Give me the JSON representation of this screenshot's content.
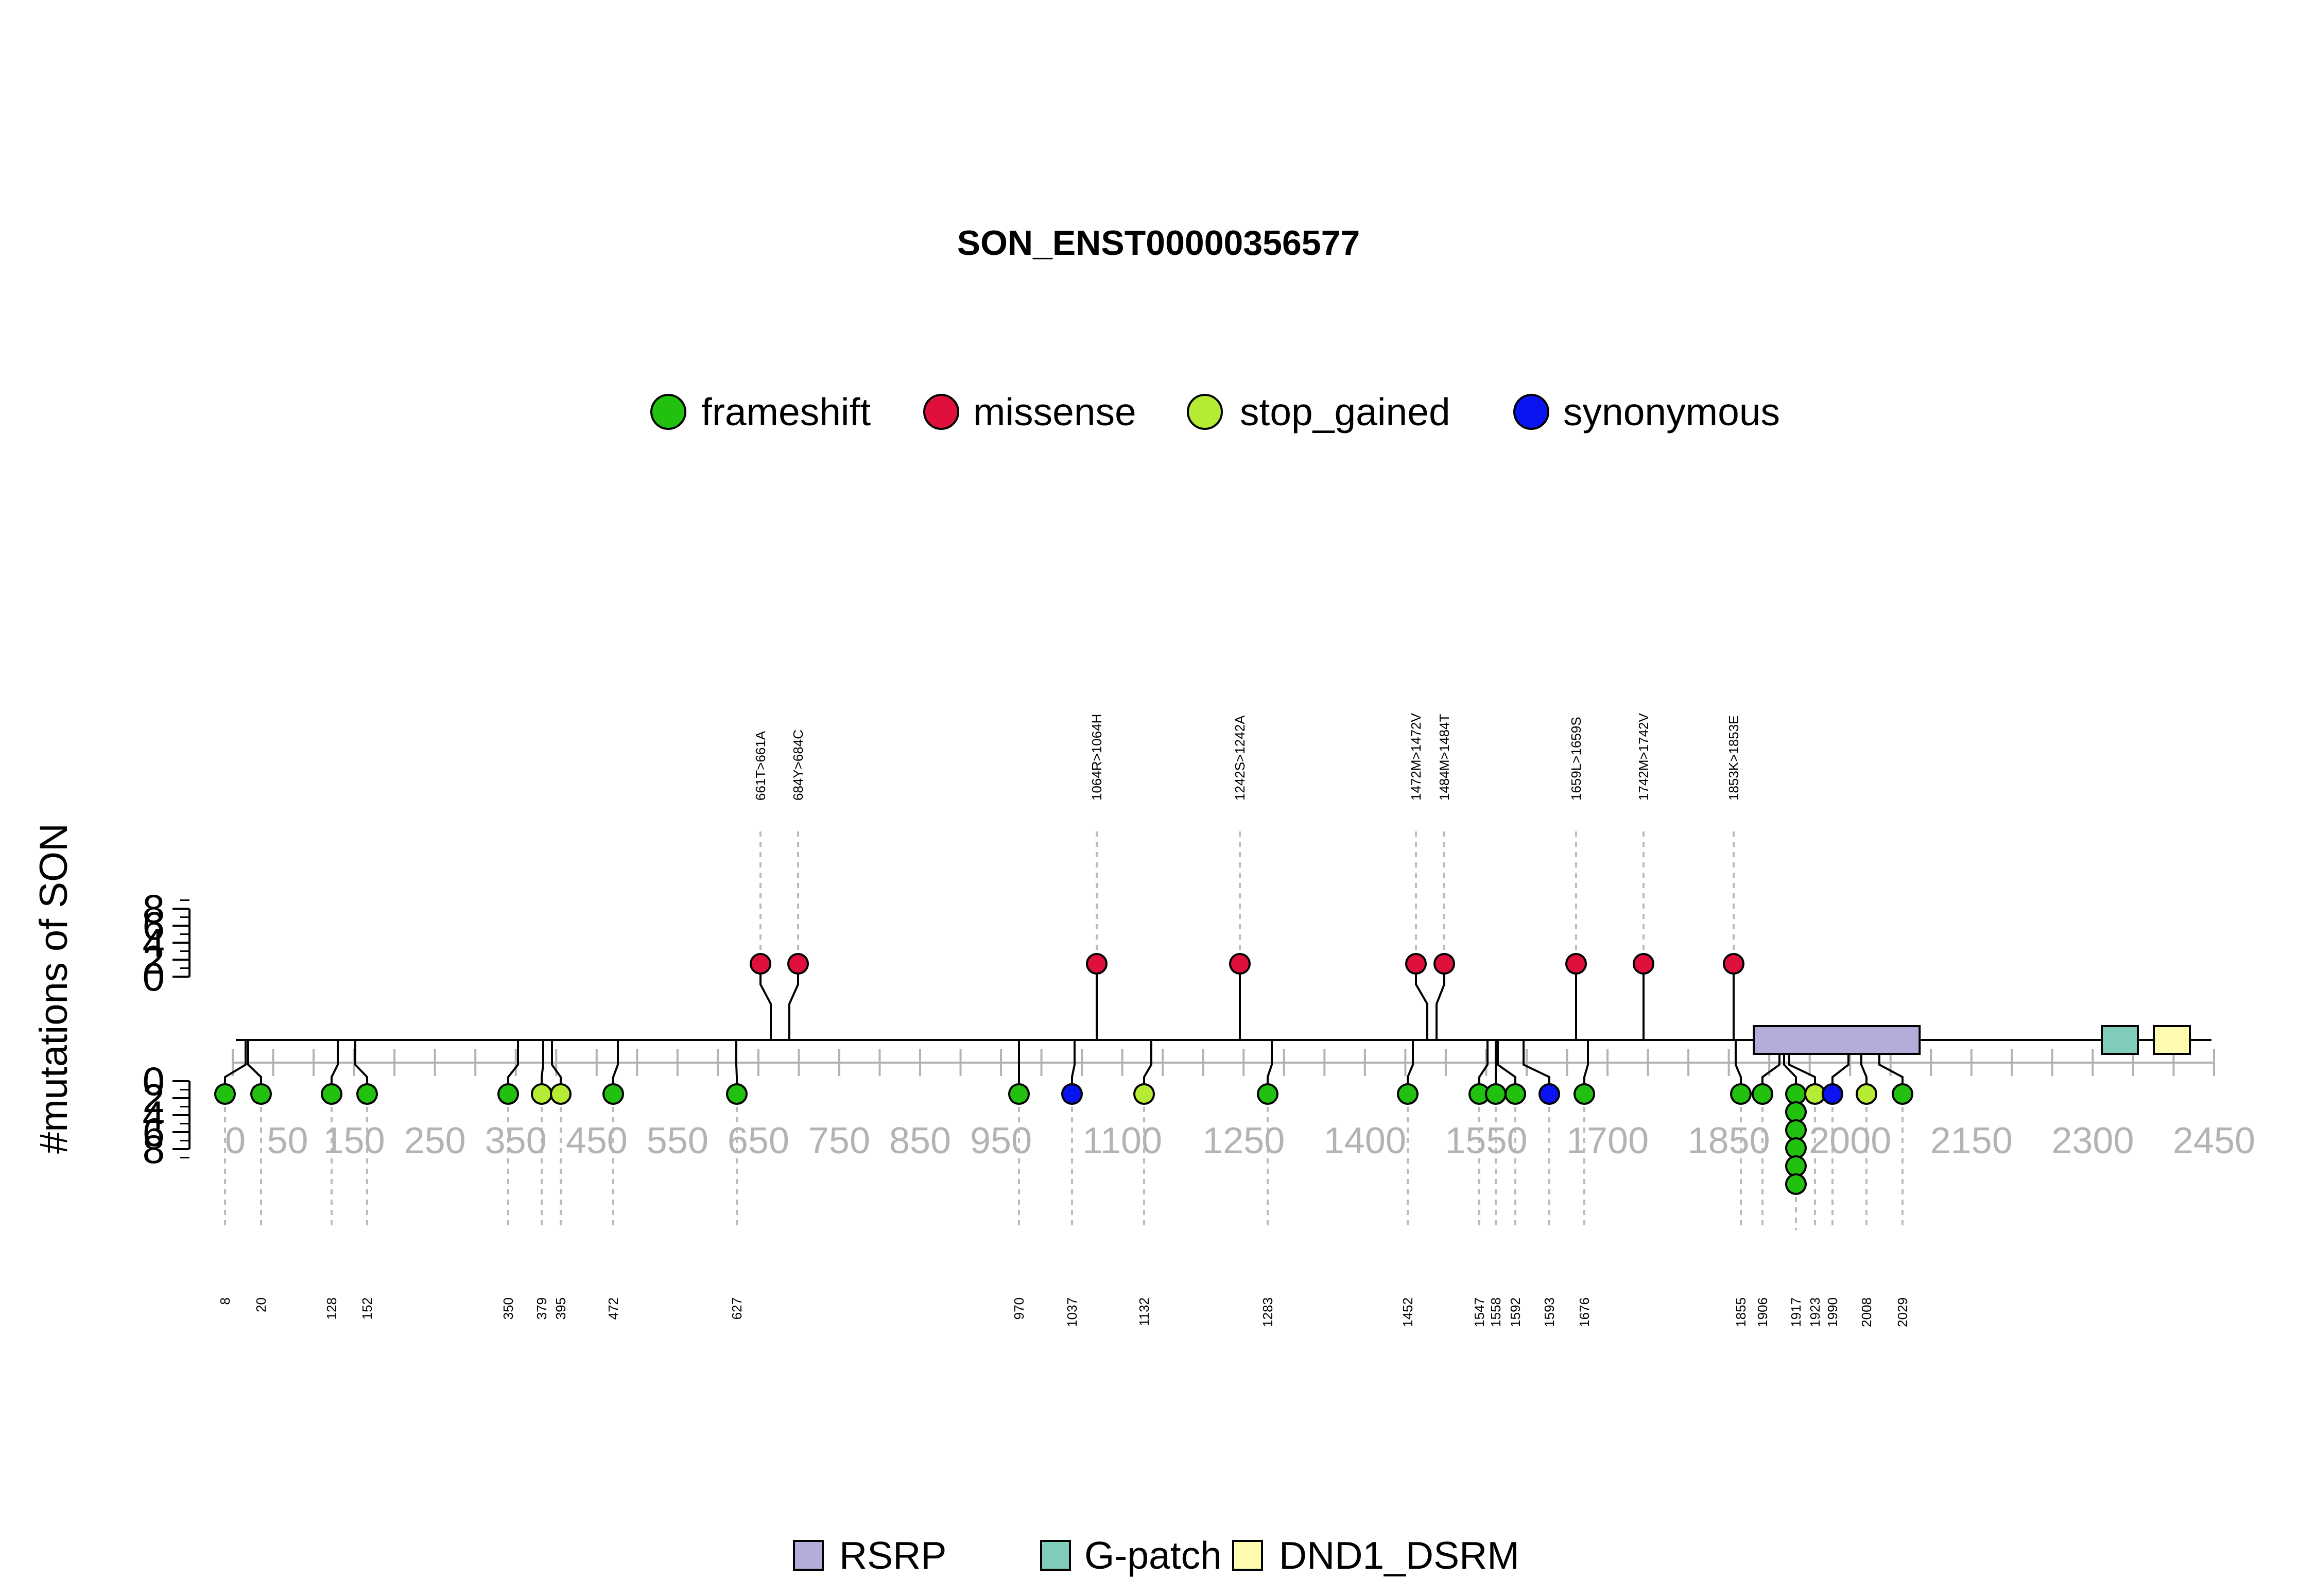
{
  "chart_data": {
    "type": "lollipop",
    "title": "SON_ENST00000356577",
    "ylabel": "#mutations of SON",
    "xlim": [
      0,
      2450
    ],
    "x_ticks": [
      0,
      50,
      150,
      250,
      350,
      450,
      550,
      650,
      750,
      850,
      950,
      1100,
      1250,
      1400,
      1550,
      1700,
      1850,
      2000,
      2150,
      2300,
      2450
    ],
    "y_ticks": [
      0,
      2,
      4,
      6,
      8
    ],
    "legend_position": "top-center",
    "mutation_types": [
      {
        "name": "frameshift",
        "color": "#22c10f"
      },
      {
        "name": "missense",
        "color": "#e0103c"
      },
      {
        "name": "stop_gained",
        "color": "#b5ea35"
      },
      {
        "name": "synonymous",
        "color": "#0a14f0"
      }
    ],
    "domains": [
      {
        "name": "RSRP",
        "start": 1881,
        "end": 2086,
        "color": "#b3addb"
      },
      {
        "name": "G-patch",
        "start": 2300,
        "end": 2340,
        "color": "#7fccbb"
      },
      {
        "name": "DND1_DSRM",
        "start": 2370,
        "end": 2410,
        "color": "#fffbb0"
      }
    ],
    "upper_mutations": [
      {
        "label": "661T>661A",
        "type": "missense",
        "count": 1
      },
      {
        "label": "684Y>684C",
        "type": "missense",
        "count": 1
      },
      {
        "label": "1064R>1064H",
        "type": "missense",
        "count": 1
      },
      {
        "label": "1242S>1242A",
        "type": "missense",
        "count": 1
      },
      {
        "label": "1472M>1472V",
        "type": "missense",
        "count": 1
      },
      {
        "label": "1484M>1484T",
        "type": "missense",
        "count": 1
      },
      {
        "label": "1659L>1659S",
        "type": "missense",
        "count": 1
      },
      {
        "label": "1742M>1742V",
        "type": "missense",
        "count": 1
      },
      {
        "label": "1853K>1853E",
        "type": "missense",
        "count": 1
      }
    ],
    "lower_mutations": [
      {
        "label": "8",
        "type": "frameshift",
        "count": 1
      },
      {
        "label": "20",
        "type": "frameshift",
        "count": 1
      },
      {
        "label": "128",
        "type": "frameshift",
        "count": 1
      },
      {
        "label": "152",
        "type": "frameshift",
        "count": 1
      },
      {
        "label": "350",
        "type": "frameshift",
        "count": 1
      },
      {
        "label": "379",
        "type": "stop_gained",
        "count": 1
      },
      {
        "label": "395",
        "type": "stop_gained",
        "count": 1
      },
      {
        "label": "472",
        "type": "frameshift",
        "count": 1
      },
      {
        "label": "627",
        "type": "frameshift",
        "count": 1
      },
      {
        "label": "970",
        "type": "frameshift",
        "count": 1
      },
      {
        "label": "1037",
        "type": "synonymous",
        "count": 1
      },
      {
        "label": "1132",
        "type": "stop_gained",
        "count": 1
      },
      {
        "label": "1283",
        "type": "frameshift",
        "count": 1
      },
      {
        "label": "1452",
        "type": "frameshift",
        "count": 1
      },
      {
        "label": "1547",
        "type": "frameshift",
        "count": 1
      },
      {
        "label": "1558",
        "type": "frameshift",
        "count": 1
      },
      {
        "label": "1592",
        "type": "frameshift",
        "count": 1
      },
      {
        "label": "1593",
        "type": "synonymous",
        "count": 1
      },
      {
        "label": "1676",
        "type": "frameshift",
        "count": 1
      },
      {
        "label": "1855",
        "type": "frameshift",
        "count": 1
      },
      {
        "label": "1906",
        "type": "frameshift",
        "count": 1
      },
      {
        "label": "1917",
        "type": "frameshift",
        "count": 6
      },
      {
        "label": "1923",
        "type": "stop_gained",
        "count": 1
      },
      {
        "label": "1990",
        "type": "synonymous",
        "count": 1
      },
      {
        "label": "2008",
        "type": "stop_gained",
        "count": 1
      },
      {
        "label": "2029",
        "type": "frameshift",
        "count": 1
      }
    ]
  }
}
